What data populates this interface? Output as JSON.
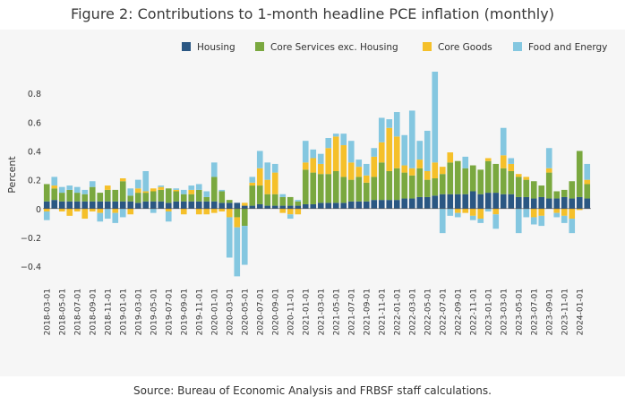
{
  "title": "Figure 2: Contributions to 1-month headline PCE inflation (monthly)",
  "source": "Source: Bureau of Economic Analysis and FRBSF staff calculations.",
  "colors": {
    "housing": "#2a5783",
    "core_services": "#7aa83f",
    "core_goods": "#f5c02a",
    "food_energy": "#84c7e0"
  },
  "chart_data": {
    "type": "bar",
    "stacked": true,
    "title": "Figure 2: Contributions to 1-month headline PCE inflation (monthly)",
    "xlabel": "",
    "ylabel": "Percent",
    "ylim": [
      -0.48,
      0.95
    ],
    "yticks": [
      -0.4,
      -0.2,
      0,
      0.2,
      0.4,
      0.6,
      0.8
    ],
    "ytick_labels": [
      "−0.4",
      "−0.2",
      "0",
      "0.2",
      "0.4",
      "0.6",
      "0.8"
    ],
    "grid": false,
    "legend_position": "top-right",
    "categories": [
      "2018-03-01",
      "2018-04-01",
      "2018-05-01",
      "2018-06-01",
      "2018-07-01",
      "2018-08-01",
      "2018-09-01",
      "2018-10-01",
      "2018-11-01",
      "2018-12-01",
      "2019-01-01",
      "2019-02-01",
      "2019-03-01",
      "2019-04-01",
      "2019-05-01",
      "2019-06-01",
      "2019-07-01",
      "2019-08-01",
      "2019-09-01",
      "2019-10-01",
      "2019-11-01",
      "2019-12-01",
      "2020-01-01",
      "2020-02-01",
      "2020-03-01",
      "2020-04-01",
      "2020-05-01",
      "2020-06-01",
      "2020-07-01",
      "2020-08-01",
      "2020-09-01",
      "2020-10-01",
      "2020-11-01",
      "2020-12-01",
      "2021-01-01",
      "2021-02-01",
      "2021-03-01",
      "2021-04-01",
      "2021-05-01",
      "2021-06-01",
      "2021-07-01",
      "2021-08-01",
      "2021-09-01",
      "2021-10-01",
      "2021-11-01",
      "2021-12-01",
      "2022-01-01",
      "2022-02-01",
      "2022-03-01",
      "2022-04-01",
      "2022-05-01",
      "2022-06-01",
      "2022-07-01",
      "2022-08-01",
      "2022-09-01",
      "2022-10-01",
      "2022-11-01",
      "2022-12-01",
      "2023-01-01",
      "2023-02-01",
      "2023-03-01",
      "2023-04-01",
      "2023-05-01",
      "2023-06-01",
      "2023-07-01",
      "2023-08-01",
      "2023-09-01",
      "2023-10-01",
      "2023-11-01",
      "2023-12-01",
      "2024-01-01",
      "2024-02-01"
    ],
    "tick_labels": [
      "2018-03-01",
      "2018-05-01",
      "2018-07-01",
      "2018-09-01",
      "2018-11-01",
      "2019-01-01",
      "2019-03-01",
      "2019-05-01",
      "2019-07-01",
      "2019-09-01",
      "2019-11-01",
      "2020-01-01",
      "2020-03-01",
      "2020-05-01",
      "2020-07-01",
      "2020-09-01",
      "2020-11-01",
      "2021-01-01",
      "2021-03-01",
      "2021-05-01",
      "2021-07-01",
      "2021-09-01",
      "2021-11-01",
      "2022-01-01",
      "2022-03-01",
      "2022-05-01",
      "2022-07-01",
      "2022-09-01",
      "2022-11-01",
      "2023-01-01",
      "2023-03-01",
      "2023-05-01",
      "2023-07-01",
      "2023-09-01",
      "2023-11-01",
      "2024-01-01"
    ],
    "series": [
      {
        "name": "Housing",
        "values": [
          0.05,
          0.06,
          0.05,
          0.05,
          0.05,
          0.05,
          0.05,
          0.05,
          0.05,
          0.05,
          0.05,
          0.05,
          0.04,
          0.05,
          0.05,
          0.05,
          0.04,
          0.05,
          0.05,
          0.05,
          0.05,
          0.05,
          0.05,
          0.04,
          0.04,
          0.04,
          0.02,
          0.02,
          0.03,
          0.02,
          0.02,
          0.02,
          0.02,
          0.02,
          0.03,
          0.03,
          0.04,
          0.04,
          0.04,
          0.04,
          0.05,
          0.05,
          0.05,
          0.06,
          0.06,
          0.06,
          0.06,
          0.07,
          0.07,
          0.08,
          0.08,
          0.09,
          0.1,
          0.1,
          0.1,
          0.1,
          0.12,
          0.1,
          0.11,
          0.11,
          0.1,
          0.1,
          0.08,
          0.08,
          0.07,
          0.08,
          0.07,
          0.07,
          0.08,
          0.07,
          0.08,
          0.07
        ]
      },
      {
        "name": "Core Services exc. Housing",
        "values": [
          0.12,
          0.08,
          0.06,
          0.08,
          0.06,
          0.05,
          0.1,
          0.06,
          0.08,
          0.08,
          0.14,
          0.04,
          0.07,
          0.06,
          0.07,
          0.08,
          0.1,
          0.07,
          0.05,
          0.05,
          0.08,
          0.03,
          0.17,
          0.08,
          0.02,
          -0.06,
          -0.12,
          0.14,
          0.13,
          0.08,
          0.08,
          0.06,
          0.06,
          0.03,
          0.24,
          0.22,
          0.2,
          0.2,
          0.22,
          0.18,
          0.15,
          0.17,
          0.13,
          0.16,
          0.26,
          0.2,
          0.22,
          0.18,
          0.16,
          0.2,
          0.12,
          0.12,
          0.14,
          0.22,
          0.23,
          0.18,
          0.18,
          0.17,
          0.22,
          0.2,
          0.18,
          0.16,
          0.14,
          0.12,
          0.12,
          0.08,
          0.18,
          0.05,
          0.05,
          0.12,
          0.32,
          0.1
        ]
      },
      {
        "name": "Core Goods",
        "values": [
          -0.02,
          0.02,
          -0.02,
          -0.05,
          -0.02,
          -0.07,
          -0.02,
          -0.03,
          0.03,
          -0.03,
          0.02,
          -0.04,
          0.03,
          0.01,
          0.02,
          0.02,
          -0.02,
          0.01,
          -0.04,
          0.03,
          -0.04,
          -0.04,
          -0.03,
          -0.02,
          -0.06,
          -0.07,
          0.02,
          0.02,
          0.12,
          0.1,
          0.15,
          -0.03,
          -0.04,
          -0.04,
          0.05,
          0.1,
          0.07,
          0.18,
          0.24,
          0.22,
          0.12,
          0.07,
          0.05,
          0.14,
          0.14,
          0.3,
          0.22,
          0.05,
          0.05,
          0.06,
          0.06,
          0.11,
          0.05,
          0.07,
          -0.03,
          -0.03,
          -0.05,
          -0.07,
          0.02,
          -0.04,
          0.09,
          0.05,
          0.02,
          0.02,
          -0.06,
          -0.05,
          0.03,
          -0.03,
          -0.05,
          -0.07,
          -0.01,
          0.03
        ]
      },
      {
        "name": "Food and Energy",
        "values": [
          -0.06,
          0.06,
          0.04,
          0.03,
          0.04,
          0.03,
          0.04,
          -0.06,
          -0.07,
          -0.07,
          -0.06,
          0.05,
          0.06,
          0.14,
          -0.03,
          0.01,
          -0.07,
          0.01,
          0.03,
          0.03,
          0.04,
          0.04,
          0.1,
          0.01,
          -0.28,
          -0.34,
          -0.27,
          0.04,
          0.12,
          0.12,
          0.06,
          0.02,
          -0.03,
          0.01,
          0.15,
          0.06,
          0.07,
          0.07,
          0.02,
          0.08,
          0.15,
          0.05,
          0.08,
          0.06,
          0.17,
          0.06,
          0.17,
          0.21,
          0.4,
          0.13,
          0.28,
          0.63,
          -0.17,
          -0.05,
          -0.03,
          0.08,
          -0.03,
          -0.03,
          -0.02,
          -0.1,
          0.19,
          0.04,
          -0.17,
          -0.06,
          -0.05,
          -0.07,
          0.14,
          -0.03,
          -0.05,
          -0.1,
          0.0,
          0.11
        ]
      }
    ]
  }
}
